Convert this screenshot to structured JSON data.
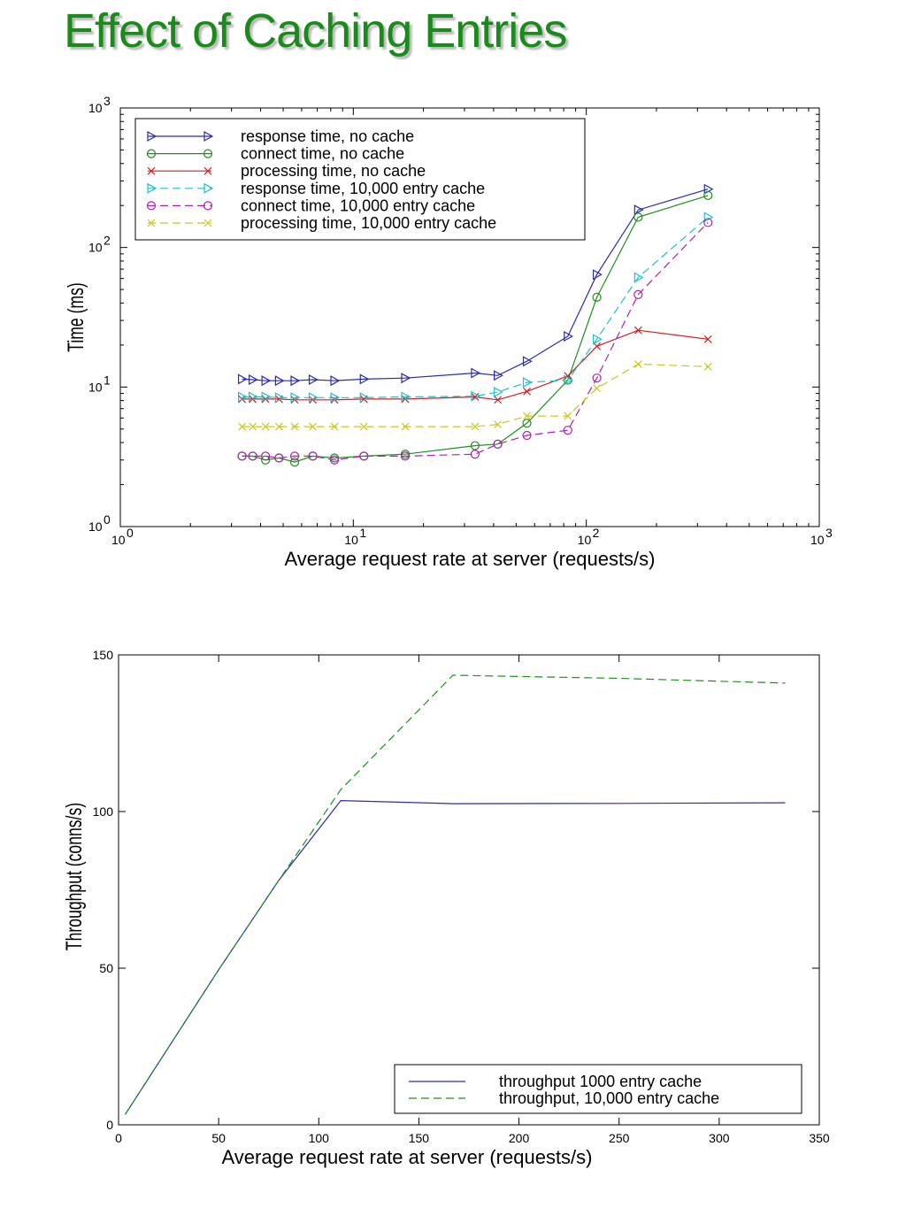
{
  "page": {
    "title": "Effect of Caching Entries"
  },
  "colors": {
    "title": "#1a8a1a",
    "blue": "#2b2bb0",
    "green": "#1f8f1f",
    "red": "#d02020",
    "cyan": "#20c0c8",
    "magenta": "#b020b0",
    "yellow": "#c8c820"
  },
  "chart_data": [
    {
      "type": "line",
      "xlabel": "Average request rate at server (requests/s)",
      "ylabel": "Time (ms)",
      "xscale": "log",
      "yscale": "log",
      "xlim": [
        1,
        1000
      ],
      "ylim": [
        1,
        1000
      ],
      "grid": false,
      "legend_position": "top-left",
      "x_ticks": [
        {
          "value": 1,
          "base": "10",
          "exp": "0"
        },
        {
          "value": 10,
          "base": "10",
          "exp": "1"
        },
        {
          "value": 100,
          "base": "10",
          "exp": "2"
        },
        {
          "value": 1000,
          "base": "10",
          "exp": "3"
        }
      ],
      "y_ticks": [
        {
          "value": 1,
          "base": "10",
          "exp": "0"
        },
        {
          "value": 10,
          "base": "10",
          "exp": "1"
        },
        {
          "value": 100,
          "base": "10",
          "exp": "2"
        },
        {
          "value": 1000,
          "base": "10",
          "exp": "3"
        }
      ],
      "series": [
        {
          "name": "response time, no cache",
          "color": "#2b2bb0",
          "dash": "solid",
          "marker": "triangle-right",
          "x": [
            3.33,
            3.7,
            4.2,
            4.8,
            5.6,
            6.7,
            8.3,
            11.1,
            16.7,
            33.3,
            41.7,
            55.6,
            83.3,
            111,
            167,
            333
          ],
          "y": [
            11.4,
            11.3,
            11.1,
            11.1,
            11.1,
            11.3,
            11.1,
            11.4,
            11.6,
            12.6,
            12.1,
            15.3,
            23.1,
            64,
            186,
            262
          ]
        },
        {
          "name": "connect time, no cache",
          "color": "#1f8f1f",
          "dash": "solid",
          "marker": "circle",
          "x": [
            3.33,
            3.7,
            4.2,
            4.8,
            5.6,
            6.7,
            8.3,
            11.1,
            16.7,
            33.3,
            41.7,
            55.6,
            83.3,
            111,
            167,
            333
          ],
          "y": [
            3.2,
            3.2,
            3.0,
            3.1,
            2.9,
            3.2,
            3.1,
            3.2,
            3.3,
            3.8,
            3.9,
            5.5,
            11.2,
            44,
            165,
            236
          ]
        },
        {
          "name": "processing time, no cache",
          "color": "#d02020",
          "dash": "solid",
          "marker": "x",
          "x": [
            3.33,
            3.7,
            4.2,
            4.8,
            5.6,
            6.7,
            8.3,
            11.1,
            16.7,
            33.3,
            41.7,
            55.6,
            83.3,
            111,
            167,
            333
          ],
          "y": [
            8.2,
            8.2,
            8.2,
            8.2,
            8.1,
            8.1,
            8.1,
            8.2,
            8.2,
            8.5,
            8.1,
            9.3,
            12,
            19.6,
            25.5,
            22
          ]
        },
        {
          "name": "response time, 10,000 entry cache",
          "color": "#20c0c8",
          "dash": "dashed",
          "marker": "triangle-right",
          "x": [
            3.33,
            3.7,
            4.2,
            4.8,
            5.6,
            6.7,
            8.3,
            11.1,
            16.7,
            33.3,
            41.7,
            55.6,
            83.3,
            111,
            167,
            333
          ],
          "y": [
            8.5,
            8.5,
            8.5,
            8.4,
            8.4,
            8.4,
            8.4,
            8.4,
            8.5,
            8.6,
            9.2,
            10.8,
            11.2,
            22,
            61,
            165
          ]
        },
        {
          "name": "connect time, 10,000 entry cache",
          "color": "#b020b0",
          "dash": "dashed",
          "marker": "circle",
          "x": [
            3.33,
            3.7,
            4.2,
            4.8,
            5.6,
            6.7,
            8.3,
            11.1,
            16.7,
            33.3,
            41.7,
            55.6,
            83.3,
            111,
            167,
            333
          ],
          "y": [
            3.2,
            3.2,
            3.2,
            3.1,
            3.2,
            3.2,
            3.0,
            3.2,
            3.2,
            3.3,
            3.9,
            4.5,
            4.9,
            11.6,
            46,
            151
          ]
        },
        {
          "name": "processing time, 10,000 entry cache",
          "color": "#c8c820",
          "dash": "dashed",
          "marker": "x",
          "x": [
            3.33,
            3.7,
            4.2,
            4.8,
            5.6,
            6.7,
            8.3,
            11.1,
            16.7,
            33.3,
            41.7,
            55.6,
            83.3,
            111,
            167,
            333
          ],
          "y": [
            5.2,
            5.2,
            5.2,
            5.2,
            5.2,
            5.2,
            5.2,
            5.2,
            5.2,
            5.2,
            5.4,
            6.2,
            6.2,
            9.8,
            14.6,
            14
          ]
        }
      ]
    },
    {
      "type": "line",
      "xlabel": "Average request rate at server (requests/s)",
      "ylabel": "Throughput (conns/s)",
      "xlim": [
        0,
        350
      ],
      "ylim": [
        0,
        150
      ],
      "grid": false,
      "legend_position": "bottom-right",
      "x_ticks": [
        "0",
        "50",
        "100",
        "150",
        "200",
        "250",
        "300",
        "350"
      ],
      "y_ticks": [
        "0",
        "50",
        "100",
        "150"
      ],
      "series": [
        {
          "name": "throughput 1000 entry cache",
          "color": "#2b2bb0",
          "dash": "solid",
          "x": [
            3.33,
            50,
            80,
            111,
            167,
            250,
            333
          ],
          "y": [
            3.3,
            49.5,
            78,
            103.5,
            102.5,
            102.6,
            102.8
          ]
        },
        {
          "name": "throughput, 10,000 entry cache",
          "color": "#1f8f1f",
          "dash": "dashed",
          "x": [
            3.33,
            50,
            80,
            111,
            167,
            250,
            333
          ],
          "y": [
            3.3,
            49.5,
            78,
            107,
            143.5,
            142.5,
            141
          ]
        }
      ]
    }
  ]
}
